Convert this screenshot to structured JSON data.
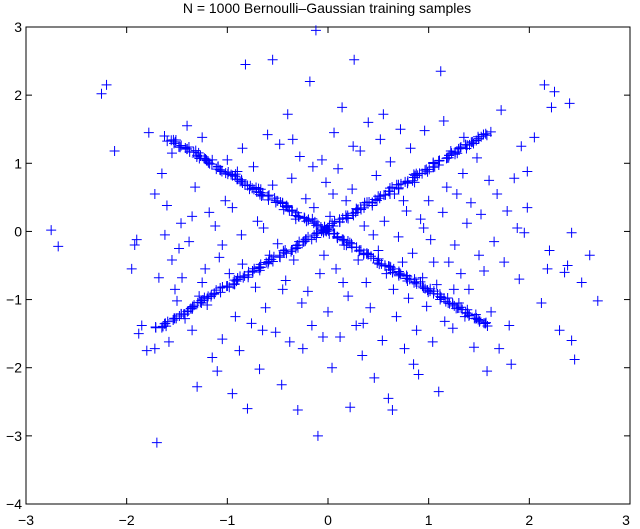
{
  "chart_data": {
    "type": "scatter",
    "title": "N = 1000 Bernoulli–Gaussian training samples",
    "xlabel": "",
    "ylabel": "",
    "xlim": [
      -3,
      3
    ],
    "ylim": [
      -4,
      3
    ],
    "x_ticks": [
      "-3",
      "-2",
      "-1",
      "0",
      "1",
      "2",
      "3"
    ],
    "y_ticks": [
      "-4",
      "-3",
      "-2",
      "-1",
      "0",
      "1",
      "2",
      "3"
    ],
    "grid": false,
    "marker": "+",
    "series": [
      {
        "color": "#0000ff",
        "points": [
          [
            -2.75,
            0.02
          ],
          [
            -2.68,
            -0.22
          ],
          [
            -2.25,
            2.02
          ],
          [
            -2.2,
            2.15
          ],
          [
            -2.12,
            1.18
          ],
          [
            -1.95,
            -0.55
          ],
          [
            -1.92,
            -0.2
          ],
          [
            -1.9,
            -0.12
          ],
          [
            -1.88,
            -1.5
          ],
          [
            -1.85,
            -1.38
          ],
          [
            -1.8,
            -1.75
          ],
          [
            -1.78,
            1.45
          ],
          [
            -1.72,
            -1.72
          ],
          [
            -1.7,
            -3.1
          ],
          [
            -1.68,
            -0.68
          ],
          [
            -1.62,
            -0.05
          ],
          [
            -1.6,
            0.38
          ],
          [
            -1.58,
            -1.62
          ],
          [
            -1.55,
            -0.42
          ],
          [
            -1.52,
            -0.85
          ],
          [
            -1.5,
            -1.02
          ],
          [
            -1.48,
            -0.25
          ],
          [
            -1.46,
            0.12
          ],
          [
            -1.42,
            -1.28
          ],
          [
            -1.4,
            1.55
          ],
          [
            -1.38,
            -0.15
          ],
          [
            -1.35,
            -1.45
          ],
          [
            -1.32,
            0.65
          ],
          [
            -1.3,
            -2.28
          ],
          [
            -1.28,
            -0.95
          ],
          [
            -1.25,
            1.38
          ],
          [
            -1.22,
            -0.55
          ],
          [
            -1.2,
            -1.08
          ],
          [
            -1.18,
            0.28
          ],
          [
            -1.15,
            -1.85
          ],
          [
            -1.12,
            0.08
          ],
          [
            -1.1,
            -2.05
          ],
          [
            -1.08,
            -0.38
          ],
          [
            -1.05,
            -1.58
          ],
          [
            -1.02,
            0.45
          ],
          [
            -1.0,
            1.05
          ],
          [
            -0.98,
            -0.62
          ],
          [
            -0.95,
            -2.38
          ],
          [
            -0.92,
            -1.25
          ],
          [
            -0.9,
            0.88
          ],
          [
            -0.88,
            -1.75
          ],
          [
            -0.86,
            -0.05
          ],
          [
            -0.85,
            -0.48
          ],
          [
            -0.82,
            2.45
          ],
          [
            -0.8,
            -2.6
          ],
          [
            -0.78,
            0.62
          ],
          [
            -0.76,
            -1.35
          ],
          [
            -0.74,
            0.95
          ],
          [
            -0.72,
            -0.82
          ],
          [
            -0.7,
            0.15
          ],
          [
            -0.68,
            -2.02
          ],
          [
            -0.66,
            0.52
          ],
          [
            -0.64,
            0.05
          ],
          [
            -0.62,
            -1.12
          ],
          [
            -0.6,
            1.42
          ],
          [
            -0.58,
            -0.35
          ],
          [
            -0.55,
            2.52
          ],
          [
            -0.52,
            -1.48
          ],
          [
            -0.5,
            -0.18
          ],
          [
            -0.48,
            1.28
          ],
          [
            -0.46,
            -2.25
          ],
          [
            -0.44,
            0.32
          ],
          [
            -0.42,
            -0.72
          ],
          [
            -0.4,
            1.72
          ],
          [
            -0.38,
            -1.62
          ],
          [
            -0.36,
            0.78
          ],
          [
            -0.34,
            -0.42
          ],
          [
            -0.32,
            0.18
          ],
          [
            -0.3,
            -2.62
          ],
          [
            -0.28,
            1.1
          ],
          [
            -0.26,
            -1.05
          ],
          [
            -0.24,
            -0.15
          ],
          [
            -0.22,
            0.48
          ],
          [
            -0.2,
            -0.88
          ],
          [
            -0.18,
            2.2
          ],
          [
            -0.16,
            -1.38
          ],
          [
            -0.14,
            0.35
          ],
          [
            -0.12,
            2.95
          ],
          [
            -0.1,
            -3.0
          ],
          [
            -0.08,
            -0.62
          ],
          [
            -0.06,
            1.05
          ],
          [
            -0.04,
            -0.35
          ],
          [
            -0.02,
            0.72
          ],
          [
            0.0,
            -1.18
          ],
          [
            0.02,
            0.22
          ],
          [
            0.04,
            -2.0
          ],
          [
            0.06,
            1.45
          ],
          [
            0.08,
            -0.55
          ],
          [
            0.1,
            0.92
          ],
          [
            0.12,
            -1.55
          ],
          [
            0.14,
            1.82
          ],
          [
            0.16,
            -0.2
          ],
          [
            0.18,
            0.45
          ],
          [
            0.2,
            -0.95
          ],
          [
            0.22,
            -2.58
          ],
          [
            0.24,
            0.62
          ],
          [
            0.26,
            2.52
          ],
          [
            0.28,
            -1.38
          ],
          [
            0.3,
            -0.42
          ],
          [
            0.32,
            1.18
          ],
          [
            0.34,
            -1.82
          ],
          [
            0.36,
            0.08
          ],
          [
            0.38,
            -0.75
          ],
          [
            0.4,
            1.6
          ],
          [
            0.42,
            -1.12
          ],
          [
            0.44,
            0.38
          ],
          [
            0.46,
            -2.15
          ],
          [
            0.48,
            0.82
          ],
          [
            0.5,
            -0.28
          ],
          [
            0.52,
            1.35
          ],
          [
            0.54,
            -1.6
          ],
          [
            0.56,
            0.15
          ],
          [
            0.58,
            -0.62
          ],
          [
            0.6,
            -2.45
          ],
          [
            0.62,
            1.02
          ],
          [
            0.64,
            -2.62
          ],
          [
            0.66,
            0.55
          ],
          [
            0.68,
            -1.25
          ],
          [
            0.7,
            -0.08
          ],
          [
            0.72,
            1.5
          ],
          [
            0.74,
            -0.45
          ],
          [
            0.76,
            -1.72
          ],
          [
            0.78,
            0.3
          ],
          [
            0.8,
            -0.98
          ],
          [
            0.82,
            1.22
          ],
          [
            0.84,
            -0.32
          ],
          [
            0.86,
            0.72
          ],
          [
            0.88,
            -1.45
          ],
          [
            0.9,
            -2.1
          ],
          [
            0.92,
            0.18
          ],
          [
            0.94,
            -0.68
          ],
          [
            0.96,
            1.48
          ],
          [
            0.98,
            -1.1
          ],
          [
            1.0,
            0.45
          ],
          [
            1.02,
            -0.12
          ],
          [
            1.04,
            -1.62
          ],
          [
            1.06,
            0.95
          ],
          [
            1.08,
            -0.78
          ],
          [
            1.1,
            -2.35
          ],
          [
            1.12,
            2.35
          ],
          [
            1.14,
            0.28
          ],
          [
            1.16,
            -1.32
          ],
          [
            1.18,
            0.65
          ],
          [
            1.2,
            -0.45
          ],
          [
            1.22,
            1.18
          ],
          [
            1.24,
            -1.42
          ],
          [
            1.26,
            -0.2
          ],
          [
            1.28,
            0.55
          ],
          [
            1.3,
            -1.05
          ],
          [
            1.32,
            -0.62
          ],
          [
            1.34,
            0.85
          ],
          [
            1.36,
            -1.25
          ],
          [
            1.38,
            0.12
          ],
          [
            1.4,
            -0.85
          ],
          [
            1.42,
            0.42
          ],
          [
            1.45,
            -1.7
          ],
          [
            1.48,
            1.08
          ],
          [
            1.5,
            -0.35
          ],
          [
            1.52,
            0.25
          ],
          [
            1.55,
            -0.58
          ],
          [
            1.58,
            -2.05
          ],
          [
            1.6,
            0.75
          ],
          [
            1.62,
            -1.18
          ],
          [
            1.65,
            -0.15
          ],
          [
            1.68,
            0.55
          ],
          [
            1.7,
            -1.72
          ],
          [
            1.72,
            1.78
          ],
          [
            1.75,
            -0.45
          ],
          [
            1.78,
            0.3
          ],
          [
            1.8,
            -1.38
          ],
          [
            1.82,
            -1.95
          ],
          [
            1.85,
            0.78
          ],
          [
            1.88,
            0.05
          ],
          [
            1.9,
            -0.7
          ],
          [
            1.92,
            1.25
          ],
          [
            1.95,
            -0.02
          ],
          [
            1.98,
            0.35
          ],
          [
            2.15,
            2.15
          ],
          [
            2.18,
            -0.55
          ],
          [
            2.2,
            -0.28
          ],
          [
            2.22,
            1.82
          ],
          [
            2.25,
            2.05
          ],
          [
            2.3,
            -1.45
          ],
          [
            2.35,
            -0.6
          ],
          [
            2.38,
            -0.5
          ],
          [
            2.4,
            1.88
          ],
          [
            2.42,
            -1.6
          ],
          [
            2.45,
            -1.88
          ],
          [
            2.52,
            -0.75
          ],
          [
            2.6,
            -0.35
          ],
          [
            2.68,
            -1.02
          ],
          [
            2.42,
            -0.02
          ],
          [
            2.05,
            1.38
          ],
          [
            1.98,
            0.88
          ],
          [
            2.12,
            -1.05
          ],
          [
            -1.72,
            0.55
          ],
          [
            -1.65,
            0.85
          ],
          [
            -1.55,
            1.15
          ],
          [
            -1.45,
            -0.68
          ],
          [
            -1.35,
            0.22
          ],
          [
            -1.25,
            -0.75
          ],
          [
            -1.15,
            1.05
          ],
          [
            -1.05,
            -0.2
          ],
          [
            -0.95,
            0.35
          ],
          [
            -0.85,
            1.22
          ],
          [
            -0.75,
            -0.58
          ],
          [
            -0.65,
            -1.45
          ],
          [
            -0.55,
            0.68
          ],
          [
            -0.45,
            -0.85
          ],
          [
            -0.35,
            1.35
          ],
          [
            -0.25,
            -1.72
          ],
          [
            -0.15,
            0.95
          ],
          [
            -0.05,
            -1.55
          ],
          [
            0.05,
            0.55
          ],
          [
            0.15,
            -0.75
          ],
          [
            0.25,
            1.25
          ],
          [
            0.35,
            -1.35
          ],
          [
            0.45,
            -0.05
          ],
          [
            0.55,
            1.72
          ],
          [
            0.65,
            -0.85
          ],
          [
            0.75,
            0.45
          ],
          [
            0.85,
            -1.95
          ],
          [
            0.95,
            0.05
          ],
          [
            1.05,
            -0.45
          ],
          [
            1.15,
            1.62
          ],
          [
            1.25,
            -0.85
          ],
          [
            1.35,
            1.38
          ]
        ]
      }
    ],
    "lines": [
      {
        "from": [
          -1.6,
          1.38
        ],
        "to": [
          1.6,
          -1.38
        ],
        "count": 200,
        "jitter": 0.03
      },
      {
        "from": [
          -1.7,
          -1.42
        ],
        "to": [
          1.6,
          1.45
        ],
        "count": 200,
        "jitter": 0.03
      }
    ]
  }
}
